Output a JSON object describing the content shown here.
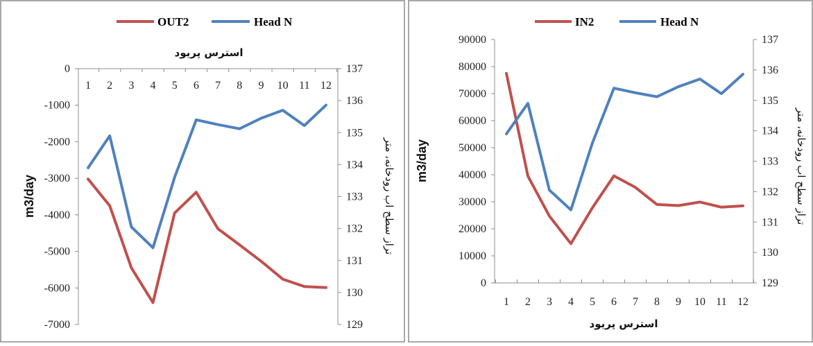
{
  "chart_data": [
    {
      "type": "line",
      "x": [
        1,
        2,
        3,
        4,
        5,
        6,
        7,
        8,
        9,
        10,
        11,
        12
      ],
      "xlabel": "استرس پریود",
      "ylabel": "m3/day",
      "y2label": "تراز سطح اب رودخانه، متر",
      "ylim": [
        -7000,
        0
      ],
      "yticks": [
        "0",
        "-1000",
        "-2000",
        "-3000",
        "-4000",
        "-5000",
        "-6000",
        "-7000"
      ],
      "y2lim": [
        129,
        137
      ],
      "y2ticks": [
        "137",
        "136",
        "135",
        "134",
        "133",
        "132",
        "131",
        "130",
        "129"
      ],
      "xaxis_position": "top",
      "legend": "top",
      "grid": false,
      "series": [
        {
          "name": "OUT2",
          "axis": "left",
          "color": "#c0504d",
          "values": [
            -3020,
            -3750,
            -5450,
            -6400,
            -3950,
            -3380,
            -4380,
            -4820,
            -5270,
            -5760,
            -5960,
            -5990
          ]
        },
        {
          "name": "Head N",
          "axis": "right",
          "color": "#4f81bd",
          "values": [
            133.9,
            134.9,
            132.05,
            131.4,
            133.6,
            135.4,
            135.25,
            135.12,
            135.45,
            135.7,
            135.22,
            135.86
          ]
        }
      ]
    },
    {
      "type": "line",
      "x": [
        1,
        2,
        3,
        4,
        5,
        6,
        7,
        8,
        9,
        10,
        11,
        12
      ],
      "xlabel": "استرس پریود",
      "ylabel": "m3/day",
      "y2label": "تراز سطح اب رودخانه، متر",
      "ylim": [
        0,
        90000
      ],
      "yticks": [
        "90000",
        "80000",
        "70000",
        "60000",
        "50000",
        "40000",
        "30000",
        "20000",
        "10000",
        "0"
      ],
      "y2lim": [
        129,
        137
      ],
      "y2ticks": [
        "137",
        "136",
        "135",
        "134",
        "133",
        "132",
        "131",
        "130",
        "129"
      ],
      "xaxis_position": "bottom",
      "legend": "top",
      "grid": false,
      "series": [
        {
          "name": "IN2",
          "axis": "left",
          "color": "#c0504d",
          "values": [
            77500,
            39500,
            24700,
            14500,
            27800,
            39600,
            35300,
            29000,
            28600,
            29900,
            28000,
            28500
          ]
        },
        {
          "name": "Head N",
          "axis": "right",
          "color": "#4f81bd",
          "values": [
            133.9,
            134.9,
            132.05,
            131.4,
            133.6,
            135.4,
            135.25,
            135.12,
            135.45,
            135.7,
            135.22,
            135.86
          ]
        }
      ]
    }
  ]
}
